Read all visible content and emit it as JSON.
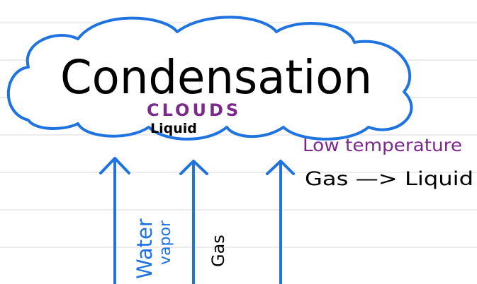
{
  "title": "Condensation",
  "cloud": {
    "label": "CLOUDS",
    "state": "Liquid"
  },
  "annotations": {
    "condition": "Low temperature",
    "change": "Gas —> Liquid"
  },
  "arrow_labels": [
    "Water",
    "vapor",
    "Gas"
  ]
}
